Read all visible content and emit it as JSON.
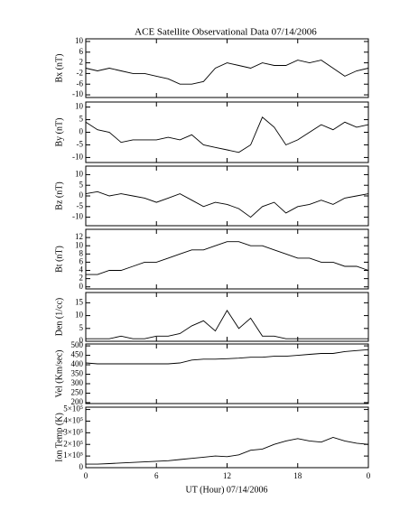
{
  "chart_data": [
    {
      "type": "line",
      "title": "ACE Satellite Observational Data   07/14/2006",
      "ylabel": "Bx (nT)",
      "ylim": [
        -11,
        11
      ],
      "yticks": [
        -10,
        -6,
        -2,
        2,
        6,
        10
      ],
      "color": "#000000",
      "x": [
        0,
        1,
        2,
        3,
        4,
        5,
        6,
        7,
        8,
        9,
        10,
        11,
        12,
        13,
        14,
        15,
        16,
        17,
        18,
        19,
        20,
        21,
        22,
        23,
        24
      ],
      "values": [
        0,
        -1,
        0,
        -1,
        -2,
        -2,
        -3,
        -4,
        -6,
        -6,
        -5,
        0,
        2,
        1,
        0,
        2,
        1,
        1,
        3,
        2,
        3,
        0,
        -3,
        -1,
        0
      ]
    },
    {
      "type": "line",
      "ylabel": "By (nT)",
      "ylim": [
        -12,
        12
      ],
      "yticks": [
        -10,
        -5,
        0,
        5,
        10
      ],
      "color": "#000000",
      "x": [
        0,
        1,
        2,
        3,
        4,
        5,
        6,
        7,
        8,
        9,
        10,
        11,
        12,
        13,
        14,
        15,
        16,
        17,
        18,
        19,
        20,
        21,
        22,
        23,
        24
      ],
      "values": [
        4,
        1,
        0,
        -4,
        -3,
        -3,
        -3,
        -2,
        -3,
        -1,
        -5,
        -6,
        -7,
        -8,
        -5,
        6,
        2,
        -5,
        -3,
        0,
        3,
        1,
        4,
        2,
        3
      ]
    },
    {
      "type": "line",
      "ylabel": "Bz (nT)",
      "ylim": [
        -14,
        14
      ],
      "yticks": [
        -10,
        -5,
        0,
        5,
        10
      ],
      "color": "#000000",
      "x": [
        0,
        1,
        2,
        3,
        4,
        5,
        6,
        7,
        8,
        9,
        10,
        11,
        12,
        13,
        14,
        15,
        16,
        17,
        18,
        19,
        20,
        21,
        22,
        23,
        24
      ],
      "values": [
        1,
        2,
        0,
        1,
        0,
        -1,
        -3,
        -1,
        1,
        -2,
        -5,
        -3,
        -4,
        -6,
        -10,
        -5,
        -3,
        -8,
        -5,
        -4,
        -2,
        -4,
        -1,
        0,
        1
      ]
    },
    {
      "type": "line",
      "ylabel": "Bt (nT)",
      "ylim": [
        -0.5,
        14
      ],
      "yticks": [
        0,
        2,
        4,
        6,
        8,
        10,
        12
      ],
      "color": "#000000",
      "x": [
        0,
        1,
        2,
        3,
        4,
        5,
        6,
        7,
        8,
        9,
        10,
        11,
        12,
        13,
        14,
        15,
        16,
        17,
        18,
        19,
        20,
        21,
        22,
        23,
        24
      ],
      "values": [
        3,
        3,
        4,
        4,
        5,
        6,
        6,
        7,
        8,
        9,
        9,
        10,
        11,
        11,
        10,
        10,
        9,
        8,
        7,
        7,
        6,
        6,
        5,
        5,
        4
      ]
    },
    {
      "type": "line",
      "ylabel": "Den (1/cc)",
      "ylim": [
        0,
        19
      ],
      "yticks": [
        0,
        5,
        10,
        15
      ],
      "color": "#000000",
      "x": [
        0,
        1,
        2,
        3,
        4,
        5,
        6,
        7,
        8,
        9,
        10,
        11,
        12,
        13,
        14,
        15,
        16,
        17,
        18,
        19,
        20,
        21,
        22,
        23,
        24
      ],
      "values": [
        1,
        1,
        1,
        2,
        1,
        1,
        2,
        2,
        3,
        6,
        8,
        4,
        12,
        5,
        9,
        2,
        2,
        1,
        1,
        1,
        1,
        1,
        1,
        1,
        1
      ]
    },
    {
      "type": "line",
      "ylabel": "Vel (Km/sec)",
      "ylim": [
        195,
        510
      ],
      "yticks": [
        200,
        250,
        300,
        350,
        400,
        450,
        500
      ],
      "color": "#000000",
      "x": [
        0,
        1,
        2,
        3,
        4,
        5,
        6,
        7,
        8,
        9,
        10,
        11,
        12,
        13,
        14,
        15,
        16,
        17,
        18,
        19,
        20,
        21,
        22,
        23,
        24
      ],
      "values": [
        410,
        405,
        405,
        405,
        405,
        405,
        405,
        405,
        410,
        425,
        430,
        430,
        432,
        435,
        440,
        440,
        445,
        445,
        450,
        455,
        460,
        460,
        470,
        475,
        480
      ]
    },
    {
      "type": "line",
      "ylabel": "Ion Temp (K)",
      "xlabel": "UT (Hour)   07/14/2006",
      "ylim": [
        0,
        520000
      ],
      "yticks": [
        0,
        {
          "value": 100000,
          "label": "1×10⁵"
        },
        {
          "value": 200000,
          "label": "2×10⁵"
        },
        {
          "value": 300000,
          "label": "3×10⁵"
        },
        {
          "value": 400000,
          "label": "4×10⁵"
        },
        {
          "value": 500000,
          "label": "5×10⁵"
        }
      ],
      "xlim": [
        0,
        24
      ],
      "xticks": [
        0,
        6,
        12,
        18,
        {
          "value": 24,
          "label": "0"
        }
      ],
      "color": "#000000",
      "x": [
        0,
        1,
        2,
        3,
        4,
        5,
        6,
        7,
        8,
        9,
        10,
        11,
        12,
        13,
        14,
        15,
        16,
        17,
        18,
        19,
        20,
        21,
        22,
        23,
        24
      ],
      "values": [
        30000,
        30000,
        35000,
        40000,
        45000,
        50000,
        55000,
        60000,
        70000,
        80000,
        90000,
        100000,
        95000,
        110000,
        150000,
        160000,
        200000,
        230000,
        250000,
        230000,
        220000,
        260000,
        230000,
        210000,
        200000
      ]
    }
  ]
}
